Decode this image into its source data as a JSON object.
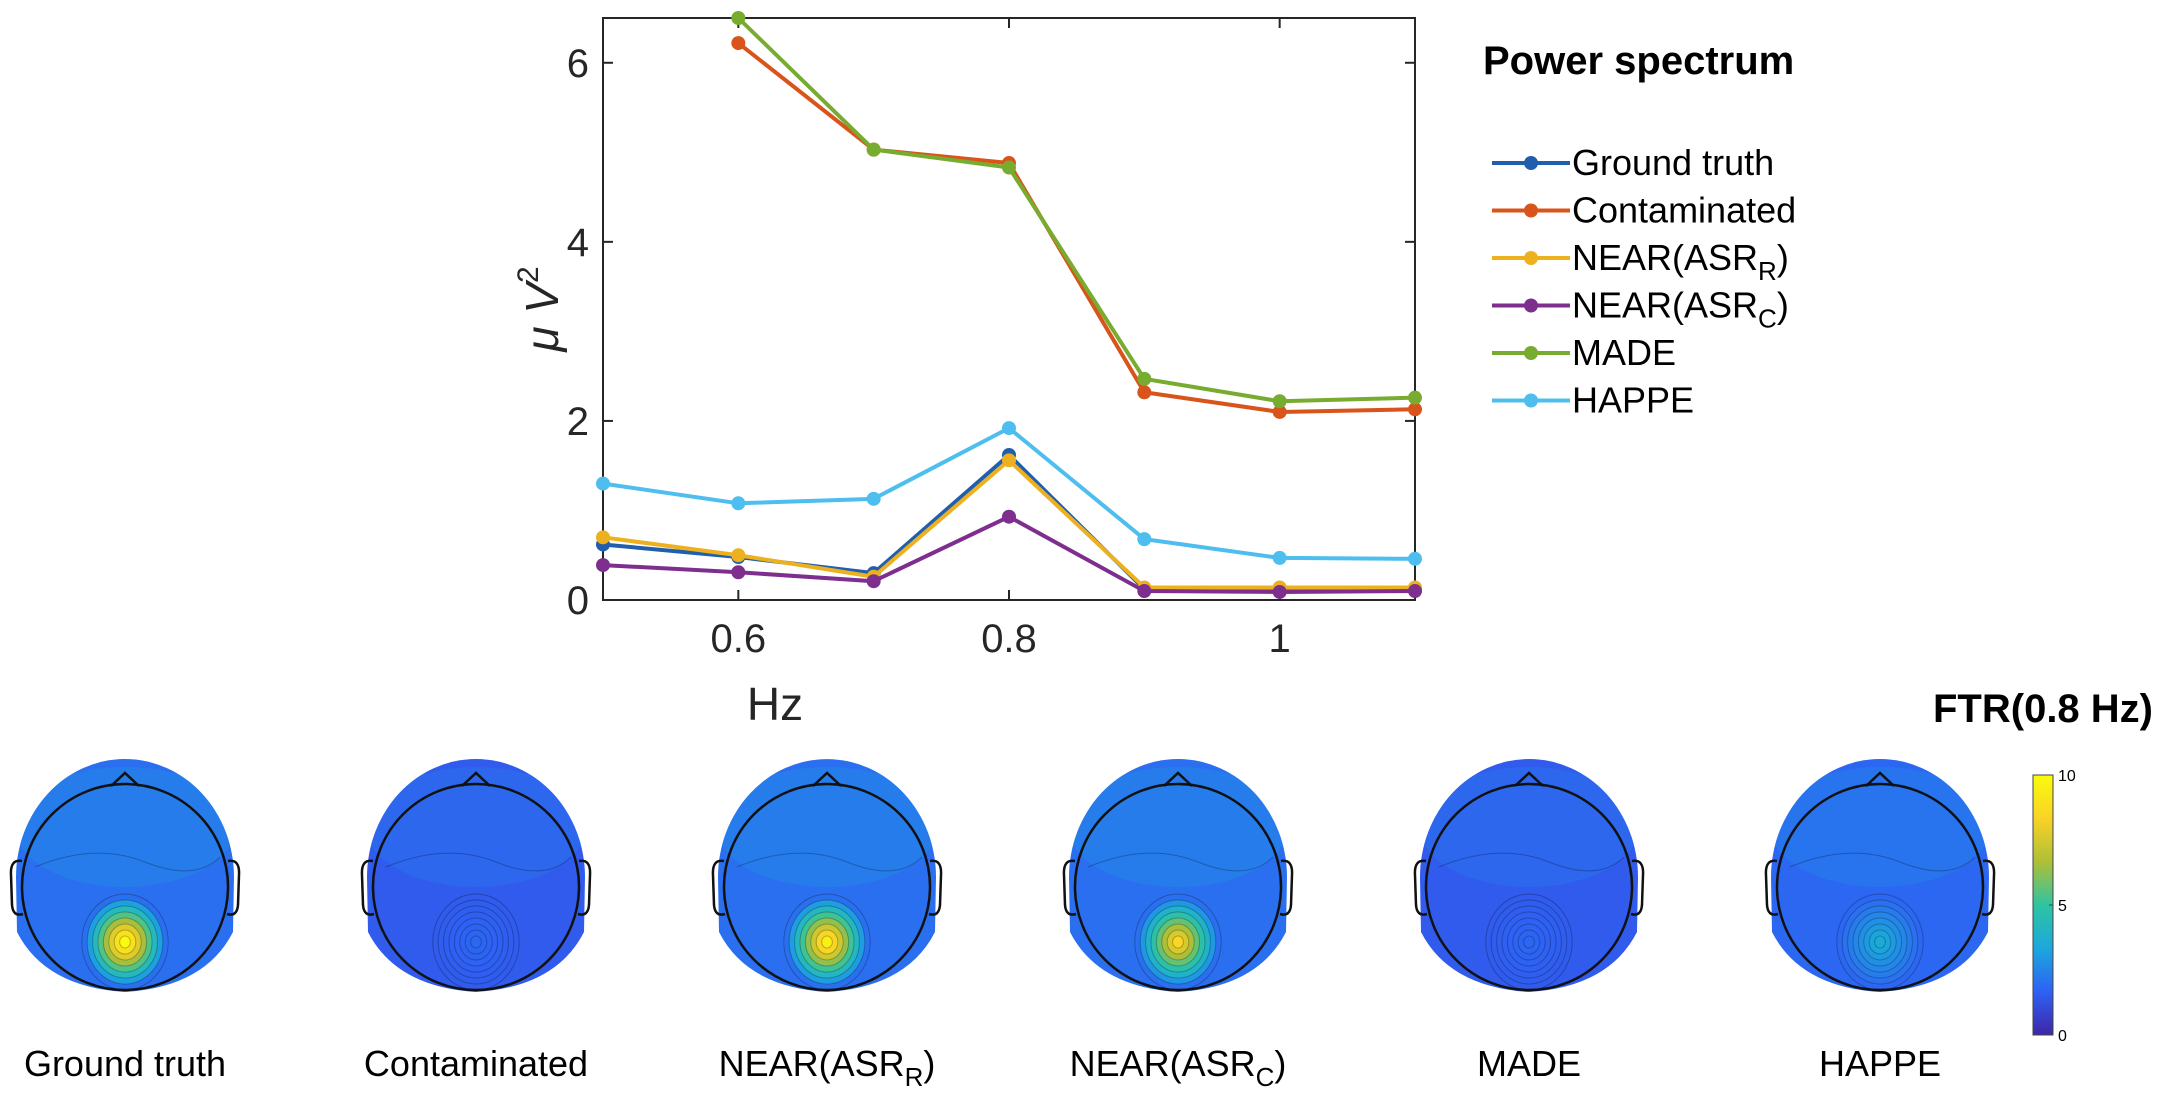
{
  "chart_data": [
    {
      "type": "line",
      "title": "Power spectrum",
      "xlabel": "Hz",
      "ylabel": "μ V²",
      "ylabel_base": "μ V",
      "ylabel_sup": "2",
      "xlim": [
        0.5,
        1.1
      ],
      "ylim": [
        0,
        6.5
      ],
      "x": [
        0.5,
        0.6,
        0.7,
        0.8,
        0.9,
        1.0,
        1.1
      ],
      "x_ticks": [
        0.6,
        0.8,
        1.0
      ],
      "x_tick_labels": [
        "0.6",
        "0.8",
        "1"
      ],
      "y_ticks": [
        0,
        2,
        4,
        6
      ],
      "y_tick_labels": [
        "0",
        "2",
        "4",
        "6"
      ],
      "legend_position": "right",
      "series": [
        {
          "name": "Ground truth",
          "name_base": "Ground truth",
          "name_sub": "",
          "name_tail": "",
          "color": "#1f5fad",
          "values": [
            0.62,
            0.48,
            0.3,
            1.62,
            0.12,
            0.12,
            0.12
          ]
        },
        {
          "name": "Contaminated",
          "name_base": "Contaminated",
          "name_sub": "",
          "name_tail": "",
          "color": "#d9541a",
          "values": [
            null,
            6.22,
            5.03,
            4.88,
            2.32,
            2.1,
            2.13
          ]
        },
        {
          "name": "NEAR(ASRR)",
          "name_base": "NEAR(ASR",
          "name_sub": "R",
          "name_tail": ")",
          "color": "#edb120",
          "values": [
            0.7,
            0.5,
            0.26,
            1.56,
            0.14,
            0.14,
            0.14
          ]
        },
        {
          "name": "NEAR(ASRC)",
          "name_base": "NEAR(ASR",
          "name_sub": "C",
          "name_tail": ")",
          "color": "#7e2f8e",
          "values": [
            0.39,
            0.31,
            0.21,
            0.93,
            0.1,
            0.09,
            0.1
          ]
        },
        {
          "name": "MADE",
          "name_base": "MADE",
          "name_sub": "",
          "name_tail": "",
          "color": "#77ac30",
          "values": [
            null,
            6.5,
            5.03,
            4.83,
            2.47,
            2.22,
            2.26
          ]
        },
        {
          "name": "HAPPE",
          "name_base": "HAPPE",
          "name_sub": "",
          "name_tail": "",
          "color": "#4dbeee",
          "values": [
            1.3,
            1.08,
            1.13,
            1.92,
            0.68,
            0.47,
            0.46
          ]
        }
      ]
    },
    {
      "type": "heatmap",
      "title": "FTR(0.8 Hz)",
      "colorbar": {
        "min": 0,
        "max": 10,
        "ticks": [
          0,
          5,
          10
        ],
        "tick_labels": [
          "0",
          "5",
          "10"
        ],
        "colors": [
          "#3e26a8",
          "#2e61f4",
          "#1ba8dc",
          "#2fc4a1",
          "#aebf37",
          "#f9d326",
          "#f9fb0e"
        ]
      },
      "maps": [
        {
          "label": "Ground truth",
          "label_base": "Ground truth",
          "label_sub": "",
          "label_tail": "",
          "background_level": 2.0,
          "peak_level": 10.0
        },
        {
          "label": "Contaminated",
          "label_base": "Contaminated",
          "label_sub": "",
          "label_tail": "",
          "background_level": 1.5,
          "peak_level": 1.8
        },
        {
          "label": "NEAR(ASRR)",
          "label_base": "NEAR(ASR",
          "label_sub": "R",
          "label_tail": ")",
          "background_level": 2.0,
          "peak_level": 9.5
        },
        {
          "label": "NEAR(ASRC)",
          "label_base": "NEAR(ASR",
          "label_sub": "C",
          "label_tail": ")",
          "background_level": 2.0,
          "peak_level": 8.5
        },
        {
          "label": "MADE",
          "label_base": "MADE",
          "label_sub": "",
          "label_tail": "",
          "background_level": 1.5,
          "peak_level": 1.8
        },
        {
          "label": "HAPPE",
          "label_base": "HAPPE",
          "label_sub": "",
          "label_tail": "",
          "background_level": 1.8,
          "peak_level": 3.5
        }
      ]
    }
  ]
}
